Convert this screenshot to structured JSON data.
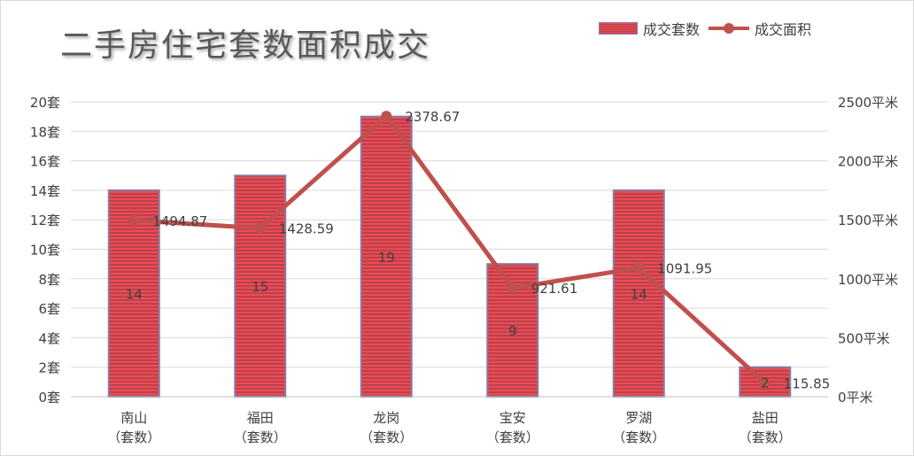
{
  "chart_data": {
    "type": "bar",
    "title": "二手房住宅套数面积成交",
    "categories": [
      "南山\n（套数）",
      "福田\n（套数）",
      "龙岗\n（套数）",
      "宝安\n（套数）",
      "罗湖\n（套数）",
      "盐田\n（套数）"
    ],
    "series": [
      {
        "name": "成交套数",
        "type": "bar",
        "axis": "left",
        "values": [
          14,
          15,
          19,
          9,
          14,
          2
        ],
        "labels": [
          "14",
          "15",
          "19",
          "9",
          "14",
          "2"
        ]
      },
      {
        "name": "成交面积",
        "type": "line",
        "axis": "right",
        "values": [
          1494.87,
          1428.59,
          2378.67,
          921.61,
          1091.95,
          115.85
        ],
        "labels": [
          "1494.87",
          "1428.59",
          "2378.67",
          "921.61",
          "1091.95",
          "115.85"
        ]
      }
    ],
    "y_left": {
      "min": 0,
      "max": 20,
      "step": 2,
      "ticks": [
        "0套",
        "2套",
        "4套",
        "6套",
        "8套",
        "10套",
        "12套",
        "14套",
        "16套",
        "18套",
        "20套"
      ]
    },
    "y_right": {
      "min": 0,
      "max": 2500,
      "step": 500,
      "ticks": [
        "0平米",
        "500平米",
        "1000平米",
        "1500平米",
        "2000平米",
        "2500平米"
      ]
    },
    "legend_position": "top-right",
    "grid": true
  },
  "colors": {
    "bar_fill_a": "#f04a50",
    "bar_fill_b": "#b8424f",
    "bar_border": "#8e7aa3",
    "line": "#c0504d",
    "grid": "#d9d9d9",
    "text": "#404040"
  }
}
